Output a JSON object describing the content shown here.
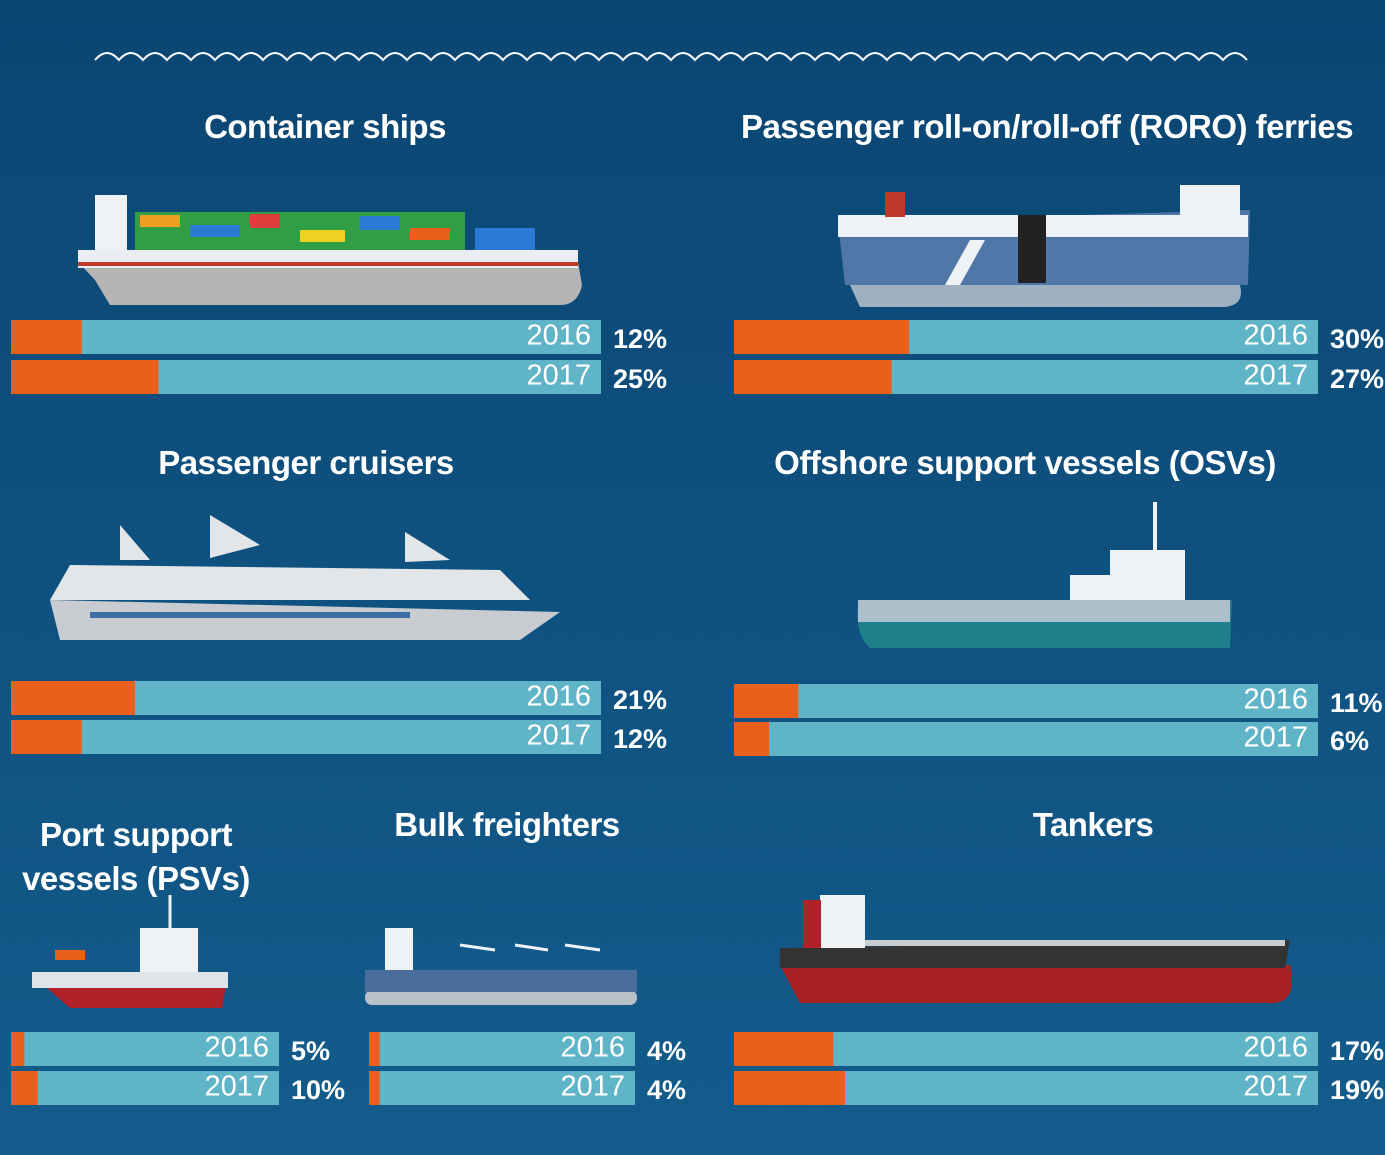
{
  "chart_data": [
    {
      "type": "bar",
      "orientation": "horizontal",
      "title": "Container ships",
      "categories": [
        "2016",
        "2017"
      ],
      "values": [
        12,
        25
      ],
      "value_labels": [
        "12%",
        "25%"
      ],
      "xlim": [
        0,
        100
      ],
      "color": "#e8601c",
      "track_color": "#5fb4c7"
    },
    {
      "type": "bar",
      "orientation": "horizontal",
      "title": "Passenger roll-on/roll-off (RORO) ferries",
      "categories": [
        "2016",
        "2017"
      ],
      "values": [
        30,
        27
      ],
      "value_labels": [
        "30%",
        "27%"
      ],
      "xlim": [
        0,
        100
      ],
      "color": "#e8601c",
      "track_color": "#5fb4c7"
    },
    {
      "type": "bar",
      "orientation": "horizontal",
      "title": "Passenger cruisers",
      "categories": [
        "2016",
        "2017"
      ],
      "values": [
        21,
        12
      ],
      "value_labels": [
        "21%",
        "12%"
      ],
      "xlim": [
        0,
        100
      ],
      "color": "#e8601c",
      "track_color": "#5fb4c7"
    },
    {
      "type": "bar",
      "orientation": "horizontal",
      "title": "Offshore support vessels (OSVs)",
      "categories": [
        "2016",
        "2017"
      ],
      "values": [
        11,
        6
      ],
      "value_labels": [
        "11%",
        "6%"
      ],
      "xlim": [
        0,
        100
      ],
      "color": "#e8601c",
      "track_color": "#5fb4c7"
    },
    {
      "type": "bar",
      "orientation": "horizontal",
      "title": "Port support vessels (PSVs)",
      "categories": [
        "2016",
        "2017"
      ],
      "values": [
        5,
        10
      ],
      "value_labels": [
        "5%",
        "10%"
      ],
      "xlim": [
        0,
        100
      ],
      "color": "#e8601c",
      "track_color": "#5fb4c7"
    },
    {
      "type": "bar",
      "orientation": "horizontal",
      "title": "Bulk freighters",
      "categories": [
        "2016",
        "2017"
      ],
      "values": [
        4,
        4
      ],
      "value_labels": [
        "4%",
        "4%"
      ],
      "xlim": [
        0,
        100
      ],
      "color": "#e8601c",
      "track_color": "#5fb4c7"
    },
    {
      "type": "bar",
      "orientation": "horizontal",
      "title": "Tankers",
      "categories": [
        "2016",
        "2017"
      ],
      "values": [
        17,
        19
      ],
      "value_labels": [
        "17%",
        "19%"
      ],
      "xlim": [
        0,
        100
      ],
      "color": "#e8601c",
      "track_color": "#5fb4c7"
    }
  ]
}
